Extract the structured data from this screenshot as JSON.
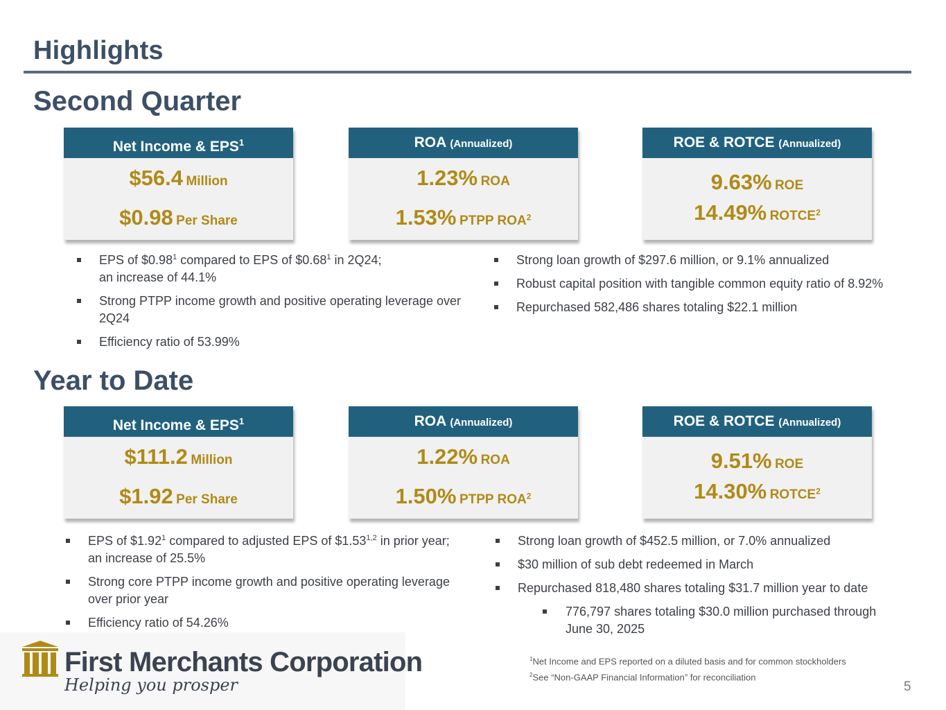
{
  "page": {
    "title": "Highlights",
    "page_number": "5"
  },
  "second_quarter": {
    "heading": "Second Quarter",
    "cards": [
      {
        "header": "Net Income & EPS",
        "header_sup": "1",
        "header_small": "",
        "line1_value": "$56.4",
        "line1_label": "Million",
        "line1_sup": "",
        "line2_value": "$0.98",
        "line2_label": "Per Share",
        "line2_sup": ""
      },
      {
        "header": "ROA",
        "header_sup": "",
        "header_small": "(Annualized)",
        "line1_value": "1.23%",
        "line1_label": "ROA",
        "line1_sup": "",
        "line2_value": "1.53%",
        "line2_label": "PTPP ROA",
        "line2_sup": "2"
      },
      {
        "header": "ROE & ROTCE",
        "header_sup": "",
        "header_small": "(Annualized)",
        "line1_value": "9.63%",
        "line1_label": "ROE",
        "line1_sup": "",
        "line2_value": "14.49%",
        "line2_label": "ROTCE",
        "line2_sup": "2"
      }
    ],
    "bullets_left": [
      {
        "t1": "EPS of $0.98",
        "s1": "1",
        "t2": " compared to EPS of $0.68",
        "s2": "1",
        "t3": " in 2Q24;",
        "t4": "an increase of 44.1%"
      },
      {
        "t1": "Strong PTPP income growth and positive operating leverage over",
        "t4": "2Q24"
      },
      {
        "t1": "Efficiency ratio of 53.99%"
      }
    ],
    "bullets_right": [
      "Strong loan growth of $297.6 million, or 9.1% annualized",
      "Robust capital position with tangible common equity ratio of 8.92%",
      "Repurchased 582,486 shares totaling $22.1 million"
    ]
  },
  "year_to_date": {
    "heading": "Year to Date",
    "cards": [
      {
        "header": "Net Income & EPS",
        "header_sup": "1",
        "header_small": "",
        "line1_value": "$111.2",
        "line1_label": "Million",
        "line1_sup": "",
        "line2_value": "$1.92",
        "line2_label": "Per Share",
        "line2_sup": ""
      },
      {
        "header": "ROA",
        "header_sup": "",
        "header_small": "(Annualized)",
        "line1_value": "1.22%",
        "line1_label": "ROA",
        "line1_sup": "",
        "line2_value": "1.50%",
        "line2_label": "PTPP ROA",
        "line2_sup": "2"
      },
      {
        "header": "ROE & ROTCE",
        "header_sup": "",
        "header_small": "(Annualized)",
        "line1_value": "9.51%",
        "line1_label": "ROE",
        "line1_sup": "",
        "line2_value": "14.30%",
        "line2_label": "ROTCE",
        "line2_sup": "2"
      }
    ],
    "bullets_left": [
      {
        "t1": "EPS of $1.92",
        "s1": "1",
        "t2": " compared to adjusted EPS of $1.53",
        "s2": "1,2",
        "t3": " in prior year;",
        "t4": "an increase of 25.5%"
      },
      {
        "t1": "Strong core PTPP income growth and positive operating leverage",
        "t4": "over prior year"
      },
      {
        "t1": "Efficiency ratio of 54.26%"
      }
    ],
    "bullets_right": [
      "Strong loan growth of $452.5 million, or 7.0% annualized",
      "$30 million of sub debt redeemed in March",
      "Repurchased 818,480 shares totaling $31.7 million year to date"
    ],
    "sub_bullet": {
      "line1": "776,797 shares totaling $30.0 million purchased through",
      "line2": "June 30, 2025"
    }
  },
  "footnotes": {
    "n1_mark": "1",
    "n1_text": "Net Income and EPS reported on a diluted basis and for common stockholders",
    "n2_mark": "2",
    "n2_text": "See “Non-GAAP Financial Information” for reconciliation"
  },
  "logo": {
    "name": "First Merchants Corporation",
    "tagline": "Helping you prosper",
    "icon": "bank-building-icon",
    "mark_color": "#b08a16"
  },
  "colors": {
    "header_bg": "#21617e",
    "accent_gold": "#b08a16",
    "heading_slate": "#3d4f66"
  }
}
